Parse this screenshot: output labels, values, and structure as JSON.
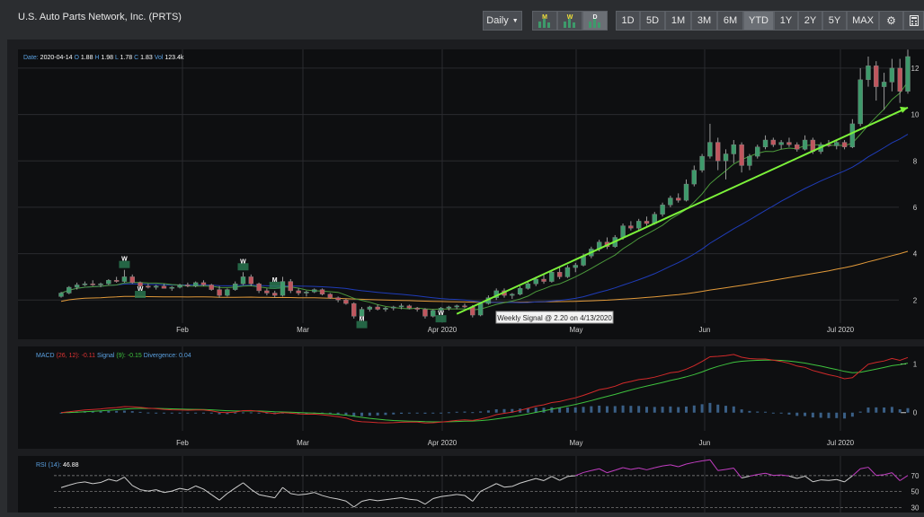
{
  "header": {
    "title": "U.S. Auto Parts Network, Inc. (PRTS)",
    "interval_label": "Daily",
    "chart_buttons": [
      {
        "letter": "M",
        "icon": "monthly-signal-icon"
      },
      {
        "letter": "W",
        "icon": "weekly-signal-icon"
      },
      {
        "letter": "D",
        "icon": "daily-signal-icon"
      }
    ],
    "ranges": [
      "1D",
      "5D",
      "1M",
      "3M",
      "6M",
      "YTD",
      "1Y",
      "2Y",
      "5Y",
      "MAX"
    ],
    "active_range": "YTD",
    "tools": [
      {
        "icon": "gear-icon"
      },
      {
        "icon": "calculator-icon"
      }
    ]
  },
  "colors": {
    "up": "#3e9a6b",
    "down": "#c0565e",
    "ma_short": "#4c9a3c",
    "ma_mid": "#1f3cb8",
    "ma_long": "#e29a3a",
    "trend": "#7cf23a",
    "macd": "#d22a2a",
    "signal": "#3ec23e",
    "rsi": "#d0d0d0",
    "rsi_high": "#c23ec2"
  },
  "chart_data": [
    {
      "type": "candlestick",
      "legend": {
        "date_label": "Date:",
        "date": "2020-04-14",
        "o_label": "O",
        "o": "1.88",
        "h_label": "H",
        "h": "1.98",
        "l_label": "L",
        "l": "1.78",
        "c_label": "C",
        "c": "1.83",
        "vol_label": "Vol",
        "vol": "123.4k"
      },
      "x_ticks": [
        "Feb",
        "Mar",
        "Apr 2020",
        "May",
        "Jun",
        "Jul 2020"
      ],
      "y_ticks": [
        "2",
        "4",
        "6",
        "8",
        "10",
        "12"
      ],
      "ylim": [
        0.5,
        12.5
      ],
      "ohlc": [
        [
          2.15,
          2.35,
          2.1,
          2.3
        ],
        [
          2.3,
          2.6,
          2.25,
          2.55
        ],
        [
          2.55,
          2.75,
          2.45,
          2.65
        ],
        [
          2.65,
          2.8,
          2.6,
          2.7
        ],
        [
          2.7,
          2.85,
          2.6,
          2.65
        ],
        [
          2.65,
          2.75,
          2.55,
          2.7
        ],
        [
          2.7,
          2.9,
          2.65,
          2.85
        ],
        [
          2.85,
          3.0,
          2.75,
          2.8
        ],
        [
          2.8,
          3.3,
          2.75,
          3.0
        ],
        [
          3.0,
          3.1,
          2.7,
          2.75
        ],
        [
          2.75,
          2.8,
          2.55,
          2.6
        ],
        [
          2.6,
          2.7,
          2.5,
          2.55
        ],
        [
          2.55,
          2.65,
          2.45,
          2.6
        ],
        [
          2.6,
          2.7,
          2.5,
          2.5
        ],
        [
          2.5,
          2.6,
          2.4,
          2.55
        ],
        [
          2.55,
          2.7,
          2.5,
          2.65
        ],
        [
          2.65,
          2.75,
          2.55,
          2.6
        ],
        [
          2.6,
          2.8,
          2.55,
          2.75
        ],
        [
          2.75,
          2.85,
          2.6,
          2.65
        ],
        [
          2.65,
          2.7,
          2.4,
          2.45
        ],
        [
          2.45,
          2.6,
          2.1,
          2.2
        ],
        [
          2.2,
          2.5,
          2.15,
          2.45
        ],
        [
          2.45,
          2.8,
          2.4,
          2.7
        ],
        [
          2.7,
          3.2,
          2.65,
          3.0
        ],
        [
          3.0,
          3.1,
          2.6,
          2.7
        ],
        [
          2.7,
          2.75,
          2.3,
          2.4
        ],
        [
          2.4,
          2.5,
          2.2,
          2.3
        ],
        [
          2.3,
          2.4,
          2.1,
          2.2
        ],
        [
          2.2,
          3.0,
          2.15,
          2.8
        ],
        [
          2.8,
          2.9,
          2.3,
          2.4
        ],
        [
          2.4,
          2.5,
          2.2,
          2.3
        ],
        [
          2.3,
          2.4,
          2.15,
          2.35
        ],
        [
          2.35,
          2.5,
          2.3,
          2.45
        ],
        [
          2.45,
          2.5,
          2.2,
          2.25
        ],
        [
          2.25,
          2.3,
          2.05,
          2.1
        ],
        [
          2.1,
          2.15,
          1.9,
          2.0
        ],
        [
          2.0,
          2.05,
          1.8,
          1.85
        ],
        [
          1.85,
          1.9,
          1.2,
          1.3
        ],
        [
          1.3,
          1.7,
          1.25,
          1.6
        ],
        [
          1.6,
          1.75,
          1.5,
          1.7
        ],
        [
          1.7,
          1.8,
          1.55,
          1.6
        ],
        [
          1.6,
          1.7,
          1.5,
          1.65
        ],
        [
          1.65,
          1.75,
          1.55,
          1.7
        ],
        [
          1.7,
          1.85,
          1.6,
          1.75
        ],
        [
          1.75,
          1.8,
          1.6,
          1.65
        ],
        [
          1.65,
          1.7,
          1.5,
          1.6
        ],
        [
          1.6,
          1.65,
          1.2,
          1.3
        ],
        [
          1.3,
          1.6,
          1.25,
          1.55
        ],
        [
          1.55,
          1.7,
          1.5,
          1.65
        ],
        [
          1.65,
          1.75,
          1.55,
          1.7
        ],
        [
          1.7,
          1.8,
          1.6,
          1.75
        ],
        [
          1.75,
          1.85,
          1.65,
          1.7
        ],
        [
          1.7,
          1.78,
          1.25,
          1.35
        ],
        [
          1.35,
          1.9,
          1.3,
          1.85
        ],
        [
          1.85,
          2.2,
          1.8,
          2.1
        ],
        [
          2.1,
          2.5,
          2.0,
          2.4
        ],
        [
          2.4,
          2.5,
          2.1,
          2.2
        ],
        [
          2.2,
          2.3,
          2.05,
          2.25
        ],
        [
          2.25,
          2.6,
          2.2,
          2.5
        ],
        [
          2.5,
          2.8,
          2.45,
          2.7
        ],
        [
          2.7,
          3.0,
          2.6,
          2.9
        ],
        [
          2.9,
          3.1,
          2.7,
          2.8
        ],
        [
          2.8,
          3.3,
          2.75,
          3.2
        ],
        [
          3.2,
          3.4,
          2.9,
          3.0
        ],
        [
          3.0,
          3.5,
          2.95,
          3.4
        ],
        [
          3.4,
          3.6,
          3.2,
          3.5
        ],
        [
          3.5,
          4.0,
          3.45,
          3.9
        ],
        [
          3.9,
          4.3,
          3.8,
          4.2
        ],
        [
          4.2,
          4.6,
          4.1,
          4.5
        ],
        [
          4.5,
          4.7,
          4.2,
          4.3
        ],
        [
          4.3,
          4.8,
          4.25,
          4.7
        ],
        [
          4.7,
          5.3,
          4.6,
          5.2
        ],
        [
          5.2,
          5.4,
          5.0,
          5.1
        ],
        [
          5.1,
          5.5,
          5.0,
          5.4
        ],
        [
          5.4,
          5.6,
          5.2,
          5.3
        ],
        [
          5.3,
          5.8,
          5.25,
          5.7
        ],
        [
          5.7,
          6.2,
          5.6,
          6.1
        ],
        [
          6.1,
          6.5,
          6.0,
          6.4
        ],
        [
          6.4,
          6.6,
          6.2,
          6.3
        ],
        [
          6.3,
          7.2,
          6.25,
          7.0
        ],
        [
          7.0,
          7.8,
          6.9,
          7.6
        ],
        [
          7.6,
          8.3,
          7.5,
          8.2
        ],
        [
          8.2,
          9.6,
          8.1,
          8.8
        ],
        [
          8.8,
          9.0,
          7.6,
          8.0
        ],
        [
          8.0,
          8.5,
          7.2,
          8.3
        ],
        [
          8.3,
          8.9,
          7.9,
          8.7
        ],
        [
          8.7,
          8.8,
          7.5,
          7.8
        ],
        [
          7.8,
          8.3,
          7.6,
          8.2
        ],
        [
          8.2,
          8.7,
          8.1,
          8.6
        ],
        [
          8.6,
          9.1,
          8.5,
          8.9
        ],
        [
          8.9,
          9.0,
          8.6,
          8.7
        ],
        [
          8.7,
          8.9,
          8.5,
          8.8
        ],
        [
          8.8,
          9.0,
          8.6,
          8.7
        ],
        [
          8.7,
          8.8,
          8.4,
          8.5
        ],
        [
          8.5,
          9.1,
          8.45,
          8.9
        ],
        [
          8.9,
          9.0,
          8.3,
          8.4
        ],
        [
          8.4,
          8.8,
          8.3,
          8.7
        ],
        [
          8.7,
          8.9,
          8.6,
          8.65
        ],
        [
          8.65,
          8.9,
          8.5,
          8.8
        ],
        [
          8.8,
          8.9,
          8.5,
          8.6
        ],
        [
          8.6,
          9.8,
          8.55,
          9.6
        ],
        [
          9.6,
          12.0,
          9.5,
          11.5
        ],
        [
          11.5,
          12.5,
          11.2,
          12.1
        ],
        [
          12.1,
          12.3,
          10.6,
          11.2
        ],
        [
          11.2,
          11.8,
          10.2,
          11.4
        ],
        [
          11.4,
          12.4,
          11.0,
          12.0
        ],
        [
          12.0,
          12.4,
          10.5,
          11.0
        ],
        [
          11.0,
          12.8,
          10.9,
          12.5
        ]
      ],
      "signals": [
        {
          "type": "W",
          "kind": "weekly"
        },
        {
          "type": "W",
          "kind": "weekly"
        },
        {
          "type": "W",
          "kind": "weekly"
        },
        {
          "type": "M",
          "kind": "monthly"
        },
        {
          "type": "M",
          "kind": "monthly"
        },
        {
          "type": "W",
          "kind": "weekly"
        }
      ],
      "annotation": "Weekly Signal @ 2.20 on 4/13/2020"
    },
    {
      "type": "line",
      "legend": {
        "name": "MACD",
        "params": "(26, 12):",
        "macd": "-0.11",
        "signal_label": "Signal",
        "signal_param": "(9):",
        "signal": "-0.15",
        "div_label": "Divergence:",
        "div": "0.04"
      },
      "x_ticks": [
        "Feb",
        "Mar",
        "Apr 2020",
        "May",
        "Jun",
        "Jul 2020"
      ],
      "y_ticks": [
        "0",
        "1"
      ],
      "ylim": [
        -0.3,
        1.25
      ]
    },
    {
      "type": "line",
      "legend": {
        "name": "RSI",
        "params": "(14):",
        "value": "46.88"
      },
      "y_ticks": [
        "70",
        "50",
        "30"
      ],
      "ylim": [
        25,
        90
      ]
    }
  ]
}
